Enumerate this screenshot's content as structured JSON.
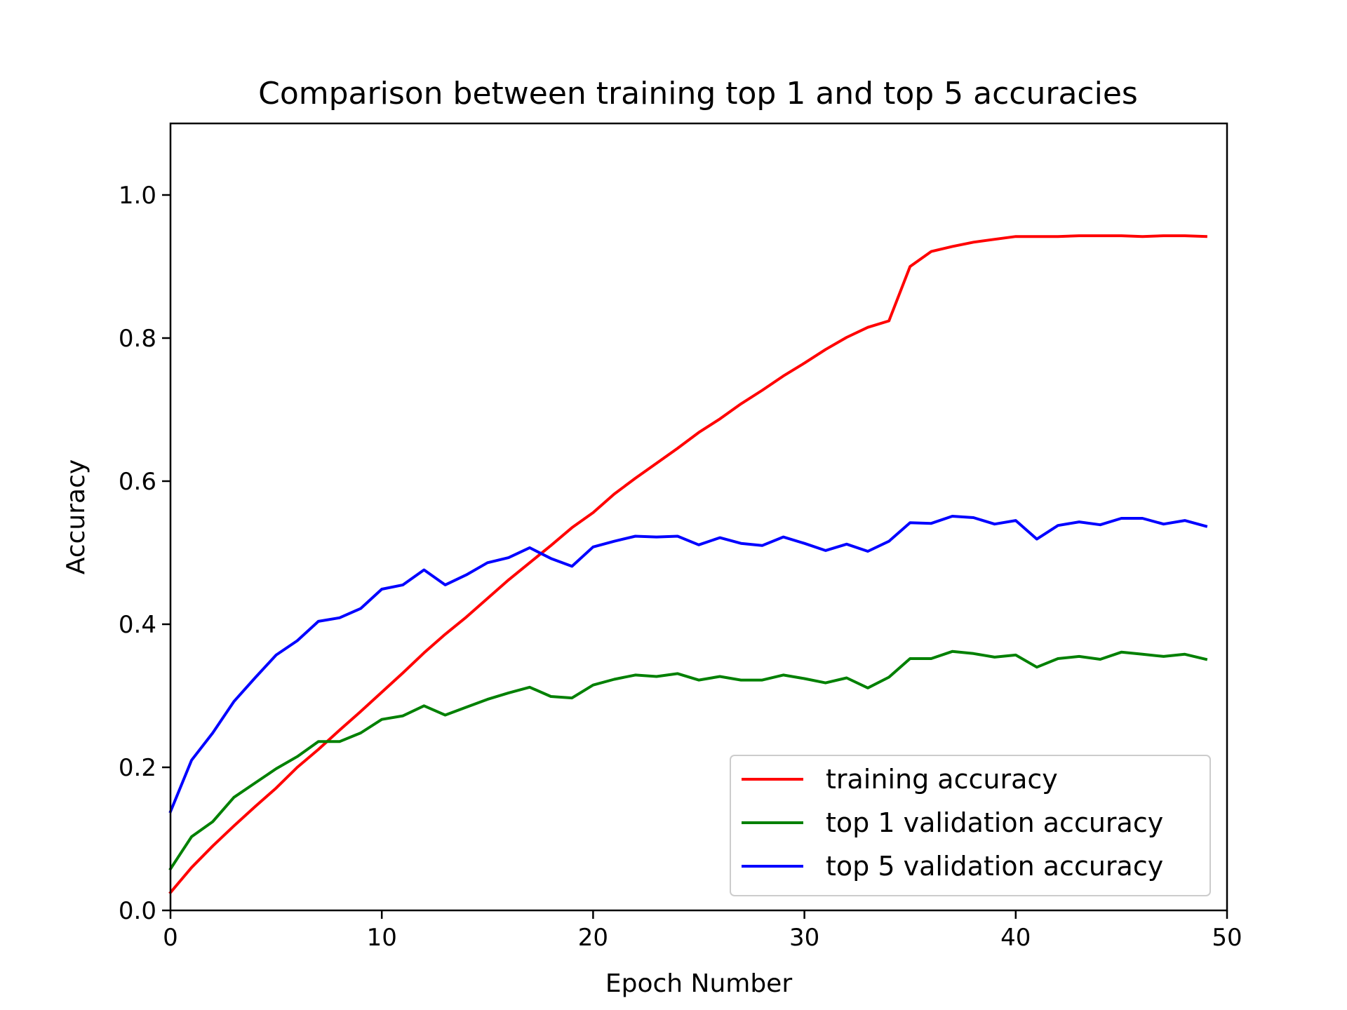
{
  "chart_data": {
    "type": "line",
    "title": "Comparison between training top 1 and top 5 accuracies",
    "xlabel": "Epoch Number",
    "ylabel": "Accuracy",
    "xlim": [
      0,
      50
    ],
    "ylim": [
      0,
      1.1
    ],
    "xticks": [
      "0",
      "10",
      "20",
      "30",
      "40",
      "50"
    ],
    "yticks": [
      "0.0",
      "0.2",
      "0.4",
      "0.6",
      "0.8",
      "1.0"
    ],
    "grid": false,
    "legend_position": "bottom-right",
    "x": [
      0,
      1,
      2,
      3,
      4,
      5,
      6,
      7,
      8,
      9,
      10,
      11,
      12,
      13,
      14,
      15,
      16,
      17,
      18,
      19,
      20,
      21,
      22,
      23,
      24,
      25,
      26,
      27,
      28,
      29,
      30,
      31,
      32,
      33,
      34,
      35,
      36,
      37,
      38,
      39,
      40,
      41,
      42,
      43,
      44,
      45,
      46,
      47,
      48,
      49
    ],
    "series": [
      {
        "name": "training accuracy",
        "color": "#ff0000",
        "values": [
          0.025,
          0.06,
          0.09,
          0.118,
          0.145,
          0.171,
          0.2,
          0.225,
          0.252,
          0.278,
          0.305,
          0.332,
          0.36,
          0.386,
          0.41,
          0.436,
          0.462,
          0.486,
          0.51,
          0.535,
          0.556,
          0.582,
          0.604,
          0.625,
          0.646,
          0.668,
          0.687,
          0.708,
          0.727,
          0.747,
          0.765,
          0.784,
          0.801,
          0.815,
          0.824,
          0.9,
          0.921,
          0.928,
          0.934,
          0.938,
          0.942,
          0.942,
          0.942,
          0.943,
          0.943,
          0.943,
          0.942,
          0.943,
          0.943,
          0.942
        ]
      },
      {
        "name": "top 1 validation accuracy",
        "color": "#008000",
        "values": [
          0.058,
          0.103,
          0.124,
          0.158,
          0.178,
          0.198,
          0.215,
          0.236,
          0.236,
          0.248,
          0.267,
          0.272,
          0.286,
          0.273,
          0.284,
          0.295,
          0.304,
          0.312,
          0.299,
          0.297,
          0.315,
          0.323,
          0.329,
          0.327,
          0.331,
          0.322,
          0.327,
          0.322,
          0.322,
          0.329,
          0.324,
          0.318,
          0.325,
          0.311,
          0.326,
          0.352,
          0.352,
          0.362,
          0.359,
          0.354,
          0.357,
          0.34,
          0.352,
          0.355,
          0.351,
          0.361,
          0.358,
          0.355,
          0.358,
          0.351
        ]
      },
      {
        "name": "top 5 validation accuracy",
        "color": "#0000ff",
        "values": [
          0.138,
          0.21,
          0.248,
          0.292,
          0.325,
          0.357,
          0.377,
          0.404,
          0.409,
          0.422,
          0.449,
          0.455,
          0.476,
          0.455,
          0.469,
          0.486,
          0.493,
          0.507,
          0.492,
          0.481,
          0.508,
          0.516,
          0.523,
          0.522,
          0.523,
          0.511,
          0.521,
          0.513,
          0.51,
          0.522,
          0.513,
          0.503,
          0.512,
          0.502,
          0.516,
          0.542,
          0.541,
          0.551,
          0.549,
          0.54,
          0.545,
          0.519,
          0.538,
          0.543,
          0.539,
          0.548,
          0.548,
          0.54,
          0.545,
          0.537
        ]
      }
    ]
  }
}
